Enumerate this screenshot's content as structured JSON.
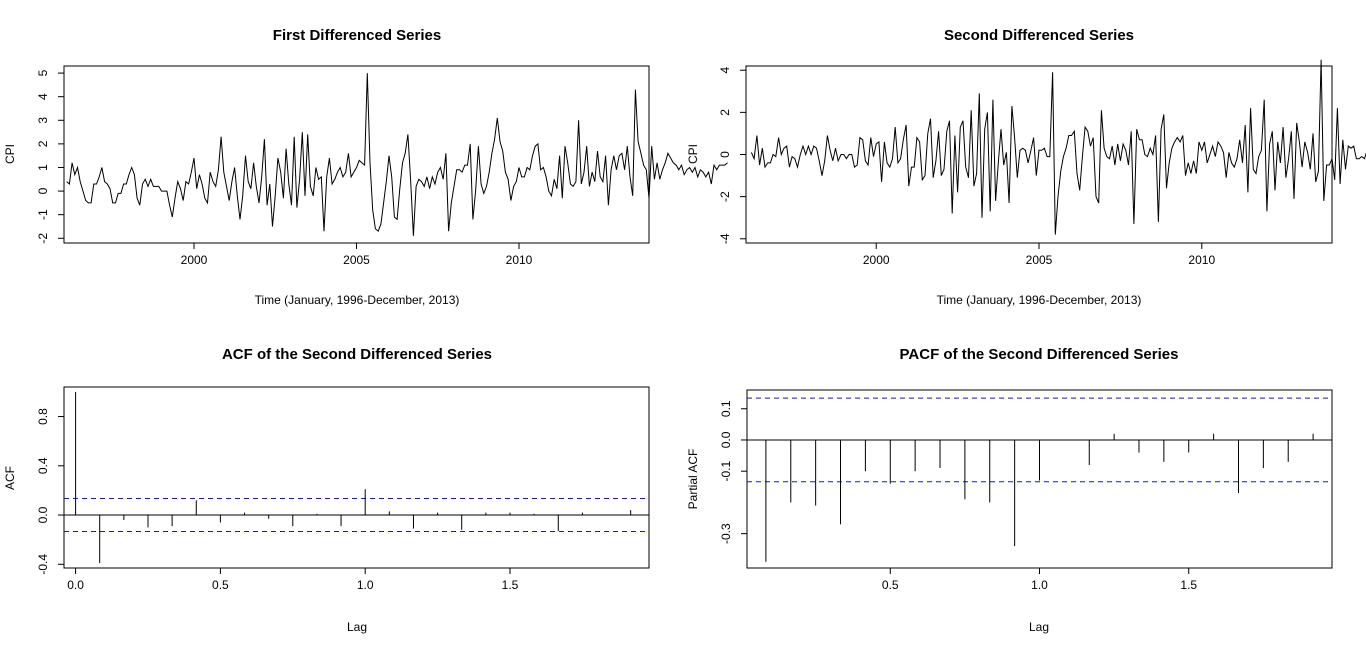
{
  "chart_data": [
    {
      "type": "line",
      "title": "First Differenced Series",
      "xlabel": "Time (January, 1996-December, 2013)",
      "ylabel": "CPI",
      "xlim": [
        1996,
        2014
      ],
      "ylim": [
        -2.2,
        5.3
      ],
      "xticks": [
        2000,
        2005,
        2010
      ],
      "xtick_labels": [
        "2000",
        "2005",
        "2010"
      ],
      "yticks": [
        -2,
        -1,
        0,
        1,
        2,
        3,
        4,
        5
      ],
      "ytick_labels": [
        "-2",
        "-1",
        "0",
        "1",
        "2",
        "3",
        "4",
        "5"
      ],
      "series": [
        {
          "x_start": 1996.0833,
          "x_step": 0.08333,
          "values": [
            0.4,
            0.3,
            1.2,
            0.7,
            1.0,
            0.4,
            0.0,
            -0.4,
            -0.5,
            -0.5,
            0.3,
            0.3,
            0.6,
            1.0,
            0.4,
            0.3,
            0.1,
            -0.5,
            -0.5,
            -0.1,
            -0.1,
            0.3,
            0.3,
            0.7,
            1.0,
            0.7,
            -0.3,
            -0.6,
            0.3,
            0.5,
            0.2,
            0.5,
            0.2,
            0.2,
            0.2,
            0.0,
            0.0,
            0.0,
            -0.6,
            -1.1,
            -0.3,
            0.4,
            0.1,
            -0.4,
            0.4,
            0.3,
            0.8,
            1.4,
            0.1,
            0.7,
            0.3,
            -0.3,
            -0.5,
            0.8,
            0.4,
            0.2,
            0.9,
            2.3,
            0.8,
            0.2,
            -0.4,
            0.4,
            1.0,
            -0.2,
            -1.2,
            -0.2,
            1.5,
            0.4,
            0.1,
            1.2,
            0.2,
            -0.5,
            0.6,
            2.2,
            -0.6,
            0.3,
            -1.5,
            -0.2,
            1.4,
            0.8,
            -0.3,
            1.8,
            0.3,
            -0.6,
            2.3,
            -0.7,
            0.5,
            2.5,
            -0.2,
            2.4,
            0.2,
            -0.2,
            1.0,
            0.5,
            0.6,
            -1.7,
            0.6,
            1.4,
            0.3,
            0.5,
            0.8,
            1.0,
            0.6,
            0.8,
            1.6,
            0.6,
            0.8,
            1.0,
            1.3,
            1.2,
            1.1,
            5.0,
            1.2,
            -0.8,
            -1.6,
            -1.7,
            -1.4,
            -0.5,
            0.4,
            1.5,
            0.6,
            -1.1,
            -1.2,
            0.1,
            1.2,
            1.6,
            2.4,
            0.4,
            -1.9,
            0.2,
            0.5,
            0.4,
            0.2,
            0.6,
            0.1,
            0.6,
            0.3,
            0.8,
            1.0,
            0.5,
            1.6,
            -1.7,
            -0.5,
            0.2,
            0.9,
            0.9,
            0.8,
            1.1,
            1.1,
            2.0,
            -1.2,
            0.0,
            1.9,
            0.3,
            -0.1,
            0.2,
            0.8,
            1.6,
            2.2,
            3.1,
            2.1,
            1.7,
            0.8,
            0.5,
            -0.4,
            0.2,
            0.4,
            1.0,
            0.6,
            0.6,
            1.0,
            0.9,
            1.5,
            1.9,
            2.0,
            0.9,
            1.0,
            0.6,
            0.0,
            -0.2,
            0.5,
            0.1,
            1.5,
            -0.3,
            1.9,
            1.2,
            0.3,
            0.2,
            0.4,
            3.0,
            0.3,
            0.8,
            1.9,
            0.2,
            0.8,
            0.4,
            1.7,
            0.6,
            0.4,
            1.5,
            -0.6,
            0.9,
            1.5,
            0.9,
            1.5,
            1.6,
            0.9,
            1.9,
            0.6,
            -0.2,
            4.3,
            2.1,
            1.6,
            1.1,
            0.9,
            -0.3,
            1.9,
            0.5,
            1.2,
            0.5,
            0.9,
            1.2,
            1.6,
            1.4,
            1.2,
            1.1,
            0.9,
            1.1,
            0.7,
            0.9,
            1.0,
            0.8,
            1.0,
            0.6,
            0.9,
            0.8,
            0.6,
            0.8,
            0.3,
            1.1,
            0.9,
            1.1,
            1.1,
            1.1,
            1.2
          ]
        }
      ]
    },
    {
      "type": "line",
      "title": "Second Differenced Series",
      "xlabel": "Time (January, 1996-December, 2013)",
      "ylabel": "CPI",
      "xlim": [
        1996,
        2014
      ],
      "ylim": [
        -4.2,
        4.2
      ],
      "xticks": [
        2000,
        2005,
        2010
      ],
      "xtick_labels": [
        "2000",
        "2005",
        "2010"
      ],
      "yticks": [
        -4,
        -2,
        0,
        2,
        4
      ],
      "ytick_labels": [
        "-4",
        "-2",
        "0",
        "2",
        "4"
      ],
      "series": [
        {
          "x_start": 1996.1667,
          "x_step": 0.08333,
          "values": [
            0.1,
            -0.2,
            0.9,
            -0.5,
            0.3,
            -0.6,
            -0.4,
            -0.4,
            0.0,
            -0.1,
            0.8,
            0.0,
            0.3,
            0.4,
            -0.6,
            -0.1,
            -0.2,
            -0.6,
            0.0,
            0.4,
            0.0,
            0.4,
            0.0,
            0.4,
            0.3,
            -0.3,
            -1.0,
            -0.3,
            0.9,
            0.2,
            -0.3,
            0.3,
            -0.3,
            0.0,
            0.0,
            -0.2,
            0.0,
            0.0,
            -0.6,
            -0.5,
            0.8,
            0.7,
            -0.3,
            -0.5,
            0.8,
            -0.1,
            0.5,
            0.6,
            -1.3,
            0.6,
            -0.4,
            -0.6,
            -0.2,
            1.3,
            -0.4,
            -0.2,
            0.7,
            1.4,
            -1.5,
            -0.6,
            -0.6,
            0.8,
            0.6,
            -1.2,
            -1.0,
            1.0,
            1.7,
            -1.1,
            -0.3,
            1.1,
            -1.0,
            -0.7,
            1.1,
            1.6,
            -2.8,
            0.9,
            -1.8,
            1.3,
            1.6,
            -0.6,
            -1.1,
            2.1,
            -1.5,
            -0.9,
            2.9,
            -3.0,
            1.2,
            2.0,
            -2.7,
            2.6,
            -2.2,
            -0.4,
            1.2,
            -0.5,
            0.1,
            -2.3,
            2.3,
            0.8,
            -1.1,
            0.2,
            0.3,
            0.2,
            -0.4,
            0.2,
            0.8,
            -1.0,
            0.2,
            0.2,
            0.3,
            -0.1,
            -0.1,
            3.9,
            -3.8,
            -2.0,
            -0.8,
            -0.1,
            0.3,
            0.9,
            0.9,
            1.1,
            -0.9,
            -1.7,
            -0.1,
            1.3,
            1.1,
            0.4,
            0.8,
            -2.0,
            -2.3,
            2.1,
            0.3,
            -0.1,
            -0.2,
            0.4,
            -0.5,
            0.5,
            -0.3,
            0.5,
            0.2,
            -0.5,
            1.1,
            -3.3,
            1.2,
            0.7,
            0.7,
            0.0,
            -0.1,
            0.3,
            0.0,
            0.9,
            -3.2,
            1.2,
            1.9,
            -1.6,
            -0.4,
            0.3,
            0.6,
            0.8,
            0.6,
            0.9,
            -1.0,
            -0.4,
            -0.9,
            -0.3,
            -0.9,
            0.6,
            0.2,
            0.6,
            -0.4,
            0.0,
            0.4,
            -0.1,
            0.6,
            0.4,
            0.1,
            -1.1,
            0.1,
            -0.4,
            -0.6,
            -0.2,
            0.7,
            -0.4,
            1.4,
            -1.8,
            2.2,
            -0.7,
            -0.9,
            -0.1,
            0.2,
            2.6,
            -2.7,
            0.5,
            1.1,
            -1.7,
            0.6,
            -0.4,
            1.3,
            -1.1,
            -0.2,
            1.1,
            -2.1,
            1.5,
            0.6,
            -0.6,
            0.6,
            0.1,
            -0.7,
            1.0,
            -1.3,
            -0.8,
            4.5,
            -2.2,
            -0.5,
            -0.5,
            -0.2,
            -1.2,
            2.2,
            -1.4,
            0.7,
            -0.7,
            0.4,
            0.3,
            0.4,
            -0.2,
            -0.2,
            -0.1,
            -0.2,
            0.2,
            -0.4,
            0.2,
            0.1,
            -0.2,
            0.2,
            -0.4,
            0.3,
            -0.1,
            -0.2,
            0.2,
            -0.5,
            0.8,
            -0.2,
            0.2,
            0.0,
            0.0,
            0.1
          ]
        }
      ]
    },
    {
      "type": "bar",
      "title": "ACF of the Second Differenced Series",
      "xlabel": "Lag",
      "ylabel": "ACF",
      "xlim": [
        -0.04,
        1.98
      ],
      "ylim": [
        -0.43,
        1.04
      ],
      "xticks": [
        0,
        0.5,
        1,
        1.5
      ],
      "xtick_labels": [
        "0.0",
        "0.5",
        "1.0",
        "1.5"
      ],
      "yticks": [
        -0.4,
        0,
        0.4,
        0.8
      ],
      "ytick_labels": [
        "-0.4",
        "0.0",
        "0.4",
        "0.8"
      ],
      "confidence_bound": 0.134,
      "lags": [
        0,
        0.0833,
        0.1667,
        0.25,
        0.3333,
        0.4167,
        0.5,
        0.5833,
        0.6667,
        0.75,
        0.8333,
        0.9167,
        1.0,
        1.0833,
        1.1667,
        1.25,
        1.3333,
        1.4167,
        1.5,
        1.5833,
        1.6667,
        1.75,
        1.8333,
        1.9167
      ],
      "values": [
        1.0,
        -0.39,
        -0.04,
        -0.1,
        -0.09,
        0.12,
        -0.06,
        0.02,
        -0.03,
        -0.09,
        0.01,
        -0.09,
        0.21,
        0.03,
        -0.11,
        0.02,
        -0.12,
        0.02,
        0.02,
        0.01,
        -0.13,
        0.02,
        0.0,
        0.04
      ]
    },
    {
      "type": "bar",
      "title": "PACF of the Second Differenced Series",
      "xlabel": "Lag",
      "ylabel": "Partial ACF",
      "xlim": [
        0.02,
        1.98
      ],
      "ylim": [
        -0.41,
        0.16
      ],
      "xticks": [
        0.5,
        1,
        1.5
      ],
      "xtick_labels": [
        "0.5",
        "1.0",
        "1.5"
      ],
      "yticks": [
        -0.3,
        -0.1,
        0.0,
        0.1
      ],
      "ytick_labels": [
        "-0.3",
        "-0.1",
        "0.0",
        "0.1"
      ],
      "confidence_bound": 0.134,
      "lags": [
        0.0833,
        0.1667,
        0.25,
        0.3333,
        0.4167,
        0.5,
        0.5833,
        0.6667,
        0.75,
        0.8333,
        0.9167,
        1.0,
        1.0833,
        1.1667,
        1.25,
        1.3333,
        1.4167,
        1.5,
        1.5833,
        1.6667,
        1.75,
        1.8333,
        1.9167
      ],
      "values": [
        -0.39,
        -0.2,
        -0.21,
        -0.27,
        -0.1,
        -0.14,
        -0.1,
        -0.09,
        -0.19,
        -0.2,
        -0.34,
        -0.13,
        0.0,
        -0.08,
        0.02,
        -0.04,
        -0.07,
        -0.04,
        0.02,
        -0.17,
        -0.09,
        -0.07,
        0.02
      ]
    }
  ]
}
